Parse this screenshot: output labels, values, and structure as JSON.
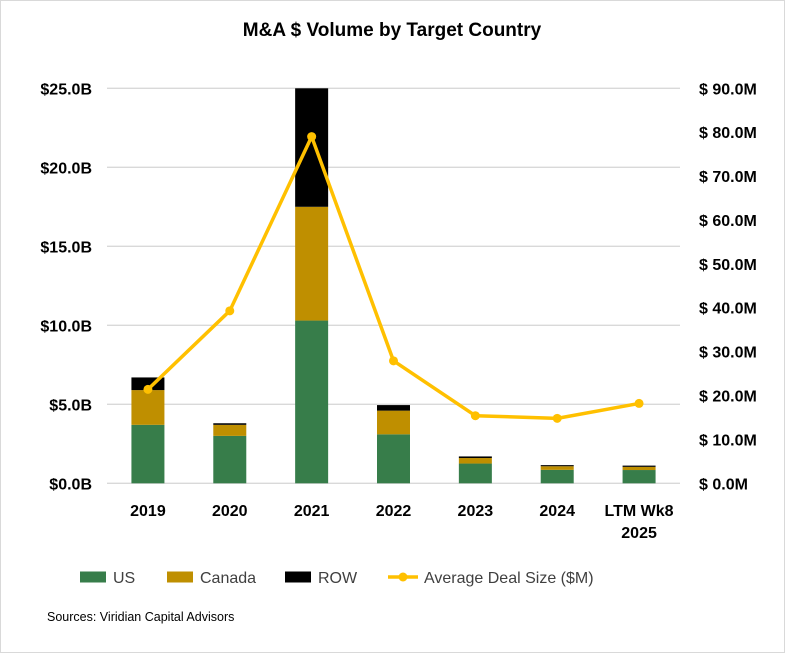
{
  "chart_data": {
    "type": "bar",
    "stacked": true,
    "title": "M&A $ Volume by Target Country",
    "categories": [
      [
        "2019"
      ],
      [
        "2020"
      ],
      [
        "2021"
      ],
      [
        "2022"
      ],
      [
        "2023"
      ],
      [
        "2024"
      ],
      [
        "LTM Wk8",
        "2025"
      ]
    ],
    "series": [
      {
        "name": "US",
        "type": "bar",
        "axis": "left",
        "color": "#377d4a",
        "values": [
          3.7,
          3.0,
          10.3,
          3.1,
          1.25,
          0.85,
          0.84
        ]
      },
      {
        "name": "Canada",
        "type": "bar",
        "axis": "left",
        "color": "#bf8f00",
        "values": [
          2.2,
          0.7,
          7.2,
          1.5,
          0.35,
          0.23,
          0.2
        ]
      },
      {
        "name": "ROW",
        "type": "bar",
        "axis": "left",
        "color": "#000000",
        "values": [
          0.8,
          0.1,
          7.5,
          0.35,
          0.1,
          0.07,
          0.08
        ]
      },
      {
        "name": "Average Deal Size ($M)",
        "type": "line",
        "axis": "right",
        "color": "#ffc000",
        "values": [
          21.4,
          39.3,
          79.0,
          27.9,
          15.4,
          14.8,
          18.2
        ]
      }
    ],
    "left_axis": {
      "unit": "$B",
      "ylim": [
        0,
        25
      ],
      "ticks": [
        0,
        5,
        10,
        15,
        20,
        25
      ],
      "tick_labels": [
        "$0.0B",
        "$5.0B",
        "$10.0B",
        "$15.0B",
        "$20.0B",
        "$25.0B"
      ]
    },
    "right_axis": {
      "unit": "$M",
      "ylim": [
        0,
        90
      ],
      "ticks": [
        0,
        10,
        20,
        30,
        40,
        50,
        60,
        70,
        80,
        90
      ],
      "tick_labels": [
        "$ 0.0M",
        "$ 10.0M",
        "$ 20.0M",
        "$ 30.0M",
        "$ 40.0M",
        "$ 50.0M",
        "$ 60.0M",
        "$ 70.0M",
        "$ 80.0M",
        "$ 90.0M"
      ]
    },
    "grid": true,
    "legend": {
      "placement": "bottom",
      "entries": [
        "US",
        "Canada",
        "ROW",
        "Average Deal Size ($M)"
      ]
    },
    "xlabel": "",
    "ylabel": ""
  },
  "source_note": "Sources: Viridian Capital Advisors"
}
